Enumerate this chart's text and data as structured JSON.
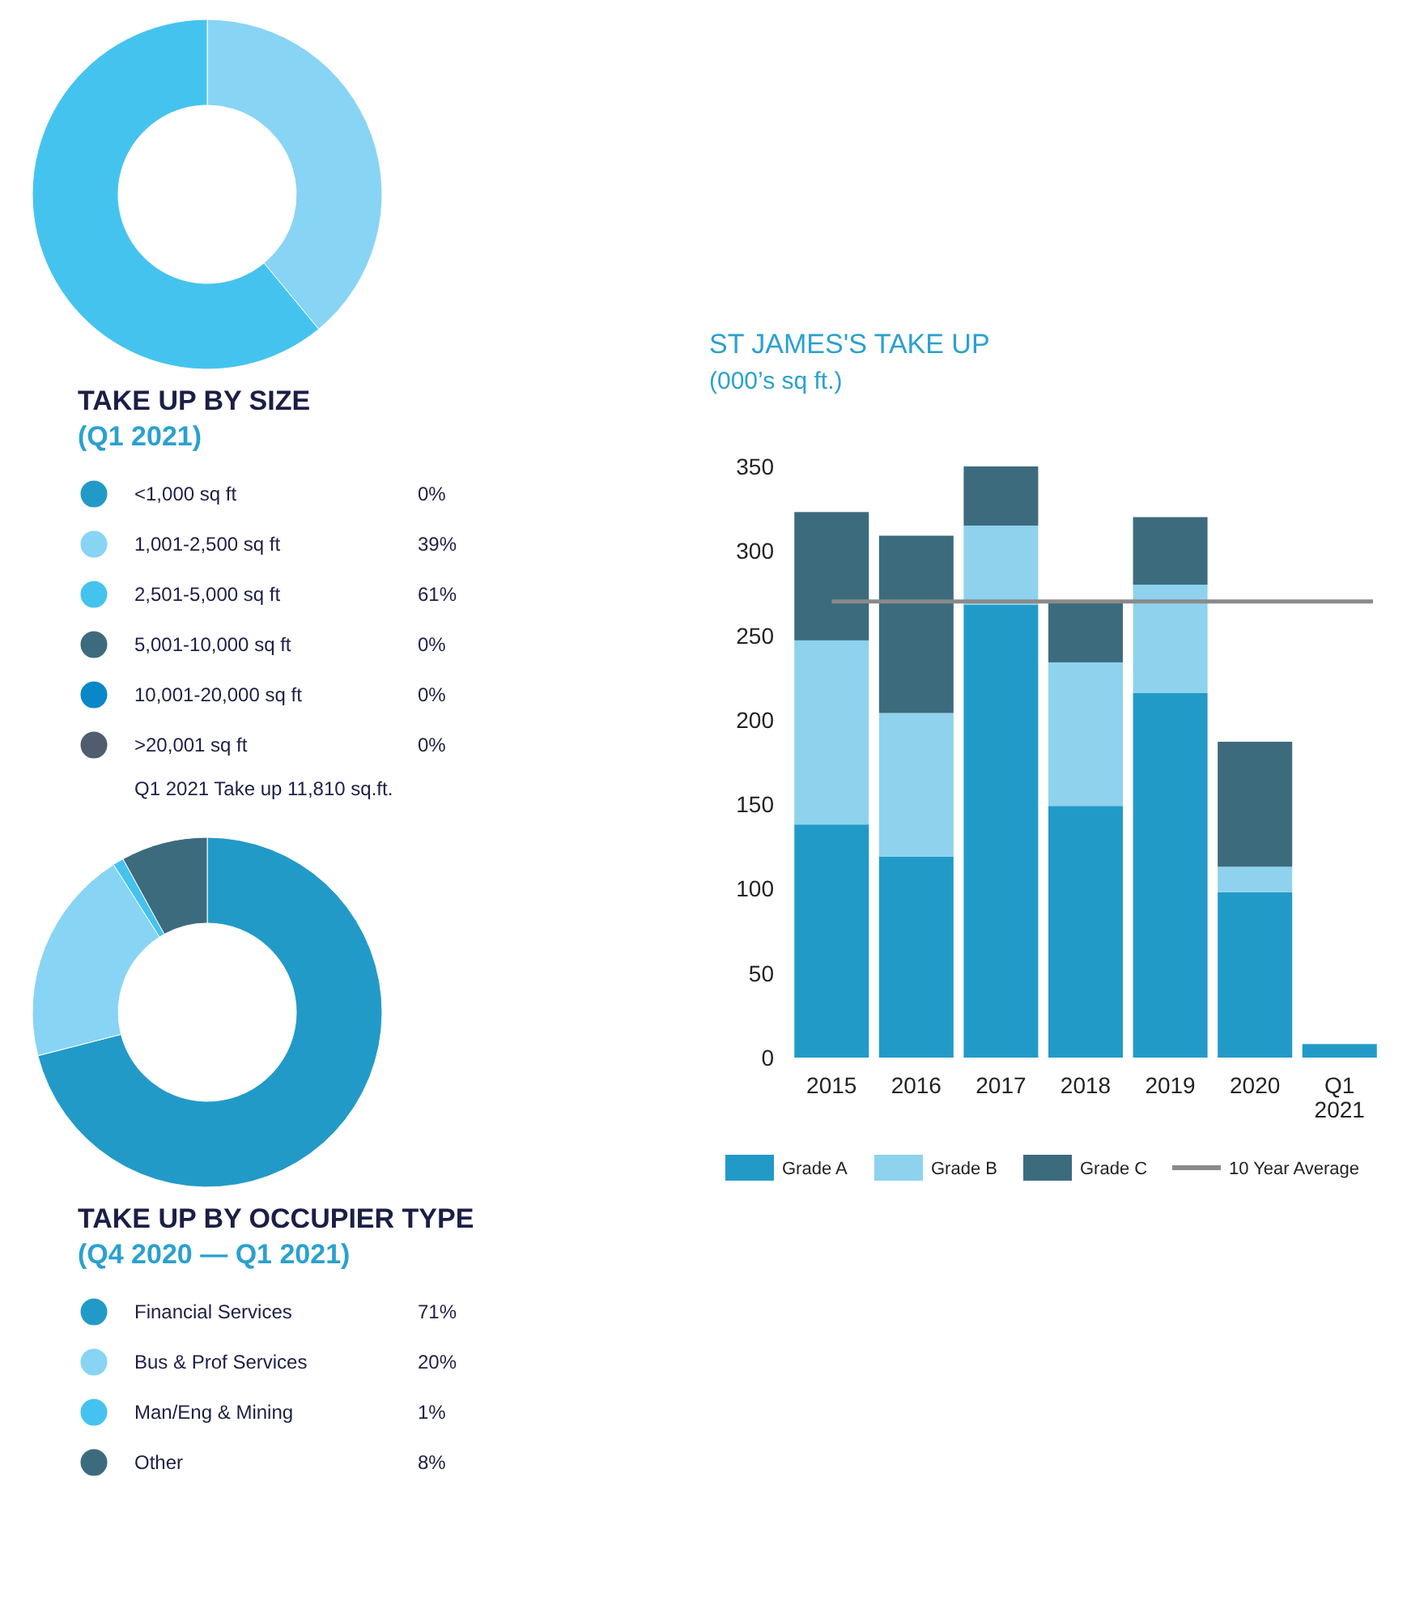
{
  "chart_data": [
    {
      "type": "donut",
      "title": "TAKE UP BY SIZE",
      "subtitle": "(Q1 2021)",
      "categories": [
        "<1,000 sq ft",
        "1,001-2,500 sq ft",
        "2,501-5,000 sq ft",
        "5,001-10,000 sq ft",
        "10,001-20,000 sq ft",
        ">20,001 sq ft"
      ],
      "values": [
        0,
        39,
        61,
        0,
        0,
        0
      ],
      "value_labels": [
        "0%",
        "39%",
        "61%",
        "0%",
        "0%",
        "0%"
      ],
      "colors": [
        "#229ac8",
        "#88d4f5",
        "#45c3ef",
        "#3d6b7e",
        "#0a87c6",
        "#4f5d6e"
      ],
      "legend": "bottom",
      "annotations": [
        "Q1 2021 Take up 11,810 sq.ft."
      ]
    },
    {
      "type": "bar",
      "title": "ST JAMES'S TAKE UP",
      "subtitle": "(000’s sq ft.)",
      "categories": [
        "2015",
        "2016",
        "2017",
        "2018",
        "2019",
        "2020",
        "Q1 2021"
      ],
      "stacked": true,
      "series": [
        {
          "name": "Grade A",
          "color": "#229ac8",
          "values": [
            138,
            119,
            268,
            149,
            216,
            98,
            8
          ]
        },
        {
          "name": "Grade B",
          "color": "#8ed2ee",
          "values": [
            109,
            85,
            47,
            85,
            64,
            15,
            0
          ]
        },
        {
          "name": "Grade C",
          "color": "#3d6b7e",
          "values": [
            76,
            105,
            35,
            35,
            40,
            74,
            0
          ]
        }
      ],
      "ref_lines": [
        {
          "axis": "y",
          "value": 270,
          "label": "10 Year Average",
          "color": "#8a8a8a"
        }
      ],
      "ylim": [
        0,
        350
      ],
      "yticks": [
        0,
        50,
        100,
        150,
        200,
        250,
        300,
        350
      ],
      "grid": false,
      "legend": "bottom"
    },
    {
      "type": "donut",
      "title": "TAKE UP BY OCCUPIER TYPE",
      "subtitle": "(Q4 2020 — Q1 2021)",
      "categories": [
        "Financial Services",
        "Bus & Prof Services",
        "Man/Eng & Mining",
        "Other"
      ],
      "values": [
        71,
        20,
        1,
        8
      ],
      "value_labels": [
        "71%",
        "20%",
        "1%",
        "8%"
      ],
      "colors": [
        "#229ac8",
        "#88d4f5",
        "#45c3ef",
        "#3d6b7e"
      ],
      "legend": "bottom"
    }
  ]
}
